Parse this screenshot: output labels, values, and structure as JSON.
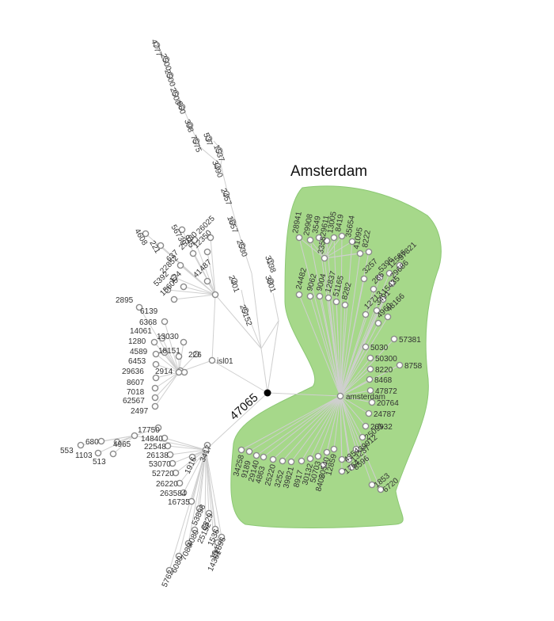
{
  "colors": {
    "cluster_fill": "#a6d88a",
    "cluster_stroke": "#8cc874",
    "edge": "#cfcfcf",
    "node_stroke": "#8a8a8a",
    "root": "#000000"
  },
  "cluster": {
    "title": "Amsterdam"
  },
  "root": {
    "label": "47065"
  },
  "hub": {
    "label": "amsterdam"
  },
  "left_sub": {
    "label": "isl01"
  },
  "labels": {
    "top_branch": [
      "4777",
      "2500",
      "2500",
      "2500",
      "660",
      "398",
      "7575",
      "537",
      "1537",
      "3490",
      "2457",
      "1657",
      "2530",
      "2401",
      "25152",
      "3138",
      "3801"
    ],
    "upper_cluster": [
      "4608",
      "221",
      "56730",
      "945",
      "26025",
      "12350",
      "25180",
      "637",
      "22852",
      "41487",
      "174",
      "5392",
      "15605"
    ],
    "left_fan": [
      "2895",
      "6139",
      "6368",
      "14061",
      "1280",
      "4589",
      "6453",
      "29636",
      "8607",
      "7018",
      "62567",
      "2497",
      "13030",
      "18151",
      "226",
      "2914"
    ],
    "far_left": [
      "553",
      "680",
      "1103",
      "513",
      "4965",
      "17750"
    ],
    "lower_left": [
      "14840",
      "22548",
      "26138",
      "53070",
      "52720",
      "26220",
      "263584",
      "16735",
      "53898",
      "3329",
      "25152",
      "1536",
      "1596",
      "4080",
      "7080",
      "6080",
      "5762",
      "14361",
      "164",
      "3417",
      "1916"
    ],
    "green_top": [
      "28941",
      "29908",
      "3549",
      "29611",
      "13005",
      "8419",
      "35654",
      "41095",
      "8222",
      "3356"
    ],
    "green_mid": [
      "24482",
      "9062",
      "9004",
      "12837",
      "51165",
      "8282",
      "3257",
      "286",
      "5396",
      "12586",
      "57821",
      "29686",
      "15435",
      "3491",
      "12713",
      "48166",
      "4960"
    ],
    "green_right": [
      "5030",
      "57381",
      "50300",
      "8220",
      "8758",
      "8468",
      "47872",
      "20764",
      "24787",
      "20932",
      "25091",
      "39912",
      "13237",
      "1764",
      "1853",
      "6720",
      "8596",
      "4354"
    ],
    "green_bottom": [
      "34258",
      "9189",
      "29140",
      "4863",
      "25220",
      "3252",
      "39821",
      "8917",
      "30132",
      "50703",
      "20540",
      "12859",
      "8405"
    ]
  }
}
